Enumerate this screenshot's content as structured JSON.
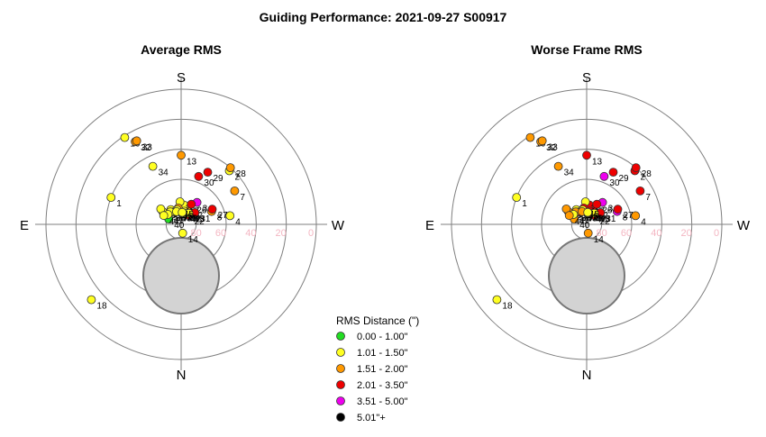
{
  "page_title": "Guiding Performance: 2021-09-27 S00917",
  "legend": {
    "title": "RMS Distance (\")",
    "entries": [
      {
        "label": "0.00 - 1.00\"",
        "color": "#22dd22"
      },
      {
        "label": "1.01 - 1.50\"",
        "color": "#ffff22"
      },
      {
        "label": "1.51 - 2.00\"",
        "color": "#ff9900"
      },
      {
        "label": "2.01 - 3.50\"",
        "color": "#ee0000"
      },
      {
        "label": "3.51 - 5.00\"",
        "color": "#ee00ee"
      },
      {
        "label": "5.01\"+",
        "color": "#000000"
      }
    ]
  },
  "chart_data": [
    {
      "type": "scatter",
      "projection": "polar-altaz",
      "title": "Average RMS",
      "directions": {
        "top": "S",
        "bottom": "N",
        "left": "E",
        "right": "W"
      },
      "ring_labels": [
        "0",
        "20",
        "40",
        "60",
        "80"
      ],
      "altitude_rings": [
        0,
        20,
        40,
        60,
        80
      ],
      "obstruction": {
        "label": "horizon-mask",
        "color": "#d3d3d3"
      },
      "points": [
        {
          "id": "1",
          "az": 249,
          "alt": 40,
          "color": "#ffff22"
        },
        {
          "id": "2",
          "az": 138,
          "alt": 42,
          "color": "#ffff22"
        },
        {
          "id": "3",
          "az": 144,
          "alt": 72,
          "color": "#ee00ee"
        },
        {
          "id": "4",
          "az": 100,
          "alt": 57,
          "color": "#ffff22"
        },
        {
          "id": "5",
          "az": 205,
          "alt": 81,
          "color": "#ffff22"
        },
        {
          "id": "7",
          "az": 122,
          "alt": 48,
          "color": "#ff9900"
        },
        {
          "id": "8",
          "az": 113,
          "alt": 68,
          "color": "#ff9900"
        },
        {
          "id": "12",
          "az": 158,
          "alt": 79,
          "color": "#ff9900"
        },
        {
          "id": "13",
          "az": 180,
          "alt": 44,
          "color": "#ff9900"
        },
        {
          "id": "14",
          "az": 10,
          "alt": 84,
          "color": "#ffff22"
        },
        {
          "id": "17",
          "az": 172,
          "alt": 77,
          "color": "#ffff22"
        },
        {
          "id": "18",
          "az": 310,
          "alt": 12,
          "color": "#ffff22"
        },
        {
          "id": "19",
          "az": 213,
          "alt": 21,
          "color": "#ffff22"
        },
        {
          "id": "20",
          "az": 167,
          "alt": 81,
          "color": "#ffff22"
        },
        {
          "id": "22",
          "az": 140,
          "alt": 82,
          "color": "#ee0000"
        },
        {
          "id": "24",
          "az": 183,
          "alt": 75,
          "color": "#ffff22"
        },
        {
          "id": "25",
          "az": 235,
          "alt": 75,
          "color": "#ffff22"
        },
        {
          "id": "26",
          "az": 153,
          "alt": 75,
          "color": "#ee0000"
        },
        {
          "id": "27",
          "az": 116,
          "alt": 67,
          "color": "#ee0000"
        },
        {
          "id": "28",
          "az": 139,
          "alt": 40,
          "color": "#ff9900"
        },
        {
          "id": "29",
          "az": 153,
          "alt": 51,
          "color": "#ee0000"
        },
        {
          "id": "30",
          "az": 160,
          "alt": 56,
          "color": "#ee0000"
        },
        {
          "id": "31",
          "az": 130,
          "alt": 78,
          "color": "#ee0000"
        },
        {
          "id": "32",
          "az": 209,
          "alt": 27,
          "color": "#ff9900"
        },
        {
          "id": "33",
          "az": 208,
          "alt": 27,
          "color": "#ff9900"
        },
        {
          "id": "34",
          "az": 206,
          "alt": 47,
          "color": "#ffff22"
        },
        {
          "id": "35",
          "az": 233,
          "alt": 73,
          "color": "#ffff22"
        },
        {
          "id": "36",
          "az": 215,
          "alt": 78,
          "color": "#ffff22"
        },
        {
          "id": "37",
          "az": 215,
          "alt": 80,
          "color": "#ffff22"
        },
        {
          "id": "38",
          "az": 221,
          "alt": 79,
          "color": "#ffff22"
        },
        {
          "id": "39",
          "az": 180,
          "alt": 82,
          "color": "#ffff22"
        },
        {
          "id": "40",
          "az": 247,
          "alt": 81,
          "color": "#22dd22"
        },
        {
          "id": "41",
          "az": 233,
          "alt": 79,
          "color": "#ffff22"
        },
        {
          "id": "42",
          "az": 159,
          "alt": 82,
          "color": "#ffff22"
        },
        {
          "id": "43",
          "az": 145,
          "alt": 81,
          "color": "#ffff22"
        },
        {
          "id": "44",
          "az": 243,
          "alt": 77,
          "color": "#ffff22"
        },
        {
          "id": "45",
          "az": 190,
          "alt": 79,
          "color": "#ff9900"
        },
        {
          "id": "46",
          "az": 195,
          "alt": 80,
          "color": "#ffff22"
        },
        {
          "id": "47",
          "az": 200,
          "alt": 81,
          "color": "#ffff22"
        },
        {
          "id": "48",
          "az": 175,
          "alt": 82,
          "color": "#ffff22"
        }
      ]
    },
    {
      "type": "scatter",
      "projection": "polar-altaz",
      "title": "Worse Frame RMS",
      "directions": {
        "top": "S",
        "bottom": "N",
        "left": "E",
        "right": "W"
      },
      "ring_labels": [
        "0",
        "20",
        "40",
        "60",
        "80"
      ],
      "altitude_rings": [
        0,
        20,
        40,
        60,
        80
      ],
      "obstruction": {
        "label": "horizon-mask",
        "color": "#d3d3d3"
      },
      "points": [
        {
          "id": "1",
          "az": 249,
          "alt": 40,
          "color": "#ffff22"
        },
        {
          "id": "2",
          "az": 138,
          "alt": 42,
          "color": "#ee0000"
        },
        {
          "id": "3",
          "az": 144,
          "alt": 72,
          "color": "#ee00ee"
        },
        {
          "id": "4",
          "az": 100,
          "alt": 57,
          "color": "#ff9900"
        },
        {
          "id": "5",
          "az": 205,
          "alt": 81,
          "color": "#ff9900"
        },
        {
          "id": "7",
          "az": 122,
          "alt": 48,
          "color": "#ee0000"
        },
        {
          "id": "8",
          "az": 113,
          "alt": 68,
          "color": "#ee00ee"
        },
        {
          "id": "12",
          "az": 158,
          "alt": 79,
          "color": "#ee0000"
        },
        {
          "id": "13",
          "az": 180,
          "alt": 44,
          "color": "#ee0000"
        },
        {
          "id": "14",
          "az": 10,
          "alt": 84,
          "color": "#ff9900"
        },
        {
          "id": "17",
          "az": 172,
          "alt": 77,
          "color": "#ee0000"
        },
        {
          "id": "18",
          "az": 310,
          "alt": 12,
          "color": "#ffff22"
        },
        {
          "id": "19",
          "az": 213,
          "alt": 21,
          "color": "#ff9900"
        },
        {
          "id": "20",
          "az": 167,
          "alt": 81,
          "color": "#ee0000"
        },
        {
          "id": "22",
          "az": 140,
          "alt": 82,
          "color": "#ee0000"
        },
        {
          "id": "24",
          "az": 183,
          "alt": 75,
          "color": "#ffff22"
        },
        {
          "id": "25",
          "az": 235,
          "alt": 75,
          "color": "#ff9900"
        },
        {
          "id": "26",
          "az": 153,
          "alt": 75,
          "color": "#ee0000"
        },
        {
          "id": "27",
          "az": 116,
          "alt": 67,
          "color": "#ee0000"
        },
        {
          "id": "28",
          "az": 139,
          "alt": 40,
          "color": "#ee0000"
        },
        {
          "id": "29",
          "az": 153,
          "alt": 51,
          "color": "#ee0000"
        },
        {
          "id": "30",
          "az": 160,
          "alt": 56,
          "color": "#ee00ee"
        },
        {
          "id": "31",
          "az": 130,
          "alt": 78,
          "color": "#ee0000"
        },
        {
          "id": "32",
          "az": 209,
          "alt": 27,
          "color": "#ff9900"
        },
        {
          "id": "33",
          "az": 208,
          "alt": 27,
          "color": "#ff9900"
        },
        {
          "id": "34",
          "az": 206,
          "alt": 47,
          "color": "#ff9900"
        },
        {
          "id": "35",
          "az": 233,
          "alt": 73,
          "color": "#ff9900"
        },
        {
          "id": "36",
          "az": 215,
          "alt": 78,
          "color": "#ffff22"
        },
        {
          "id": "37",
          "az": 215,
          "alt": 80,
          "color": "#ee0000"
        },
        {
          "id": "38",
          "az": 221,
          "alt": 79,
          "color": "#ff9900"
        },
        {
          "id": "39",
          "az": 180,
          "alt": 82,
          "color": "#ffff22"
        },
        {
          "id": "40",
          "az": 247,
          "alt": 81,
          "color": "#ff9900"
        },
        {
          "id": "41",
          "az": 233,
          "alt": 79,
          "color": "#ffff22"
        },
        {
          "id": "42",
          "az": 159,
          "alt": 82,
          "color": "#ee0000"
        },
        {
          "id": "43",
          "az": 145,
          "alt": 81,
          "color": "#ffff22"
        },
        {
          "id": "44",
          "az": 243,
          "alt": 77,
          "color": "#ff9900"
        },
        {
          "id": "45",
          "az": 190,
          "alt": 79,
          "color": "#ee0000"
        },
        {
          "id": "46",
          "az": 195,
          "alt": 80,
          "color": "#ffff22"
        },
        {
          "id": "47",
          "az": 200,
          "alt": 81,
          "color": "#ff9900"
        },
        {
          "id": "48",
          "az": 175,
          "alt": 82,
          "color": "#ffff22"
        }
      ]
    }
  ]
}
